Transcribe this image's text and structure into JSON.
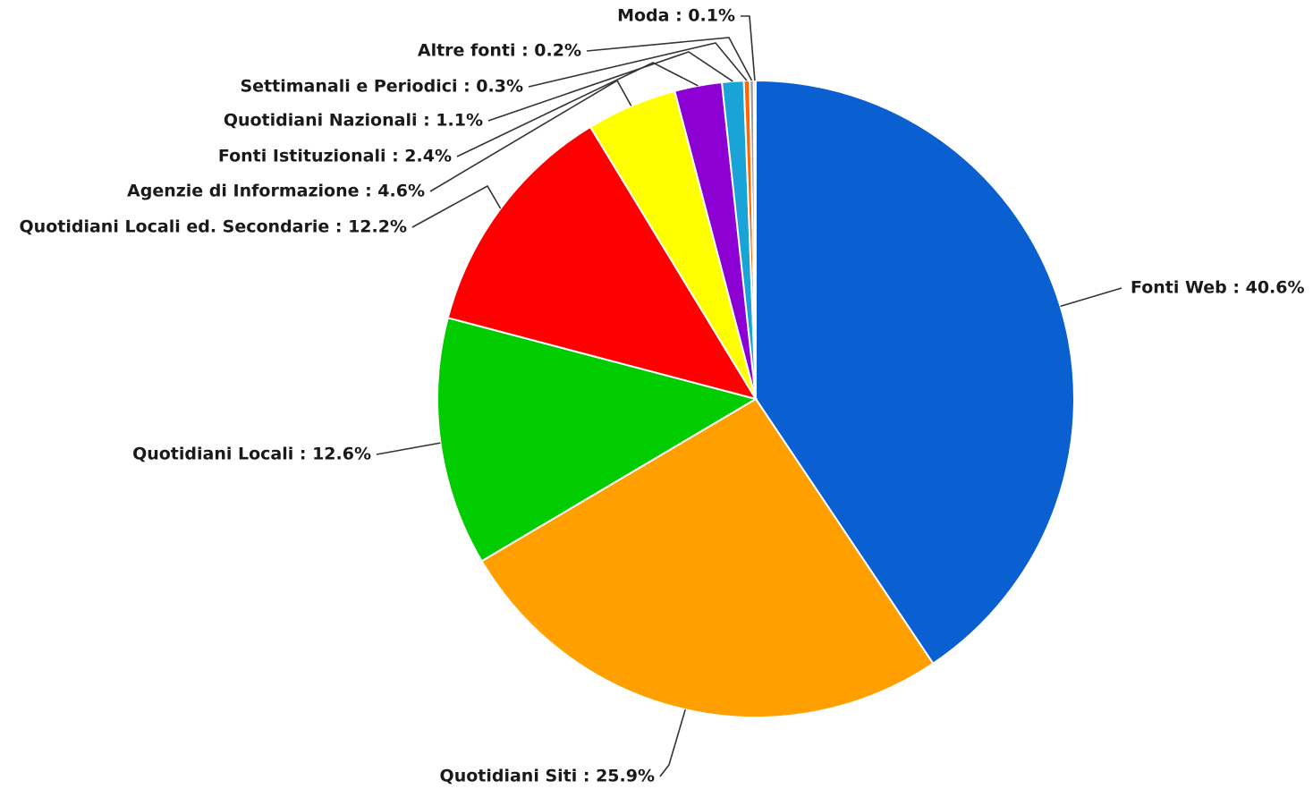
{
  "chart_data": {
    "type": "pie",
    "title": "",
    "slices": [
      {
        "label": "Fonti Web",
        "value": 40.6,
        "value_label": "40.6%",
        "color": "#0a5fd1"
      },
      {
        "label": "Quotidiani Siti ",
        "value": 25.9,
        "value_label": "25.9%",
        "color": "#ff9f00"
      },
      {
        "label": "Quotidiani Locali",
        "value": 12.6,
        "value_label": "12.6%",
        "color": "#00cc00"
      },
      {
        "label": "Quotidiani Locali ed. Secondarie ",
        "value": 12.2,
        "value_label": "12.2%",
        "color": "#ff0000"
      },
      {
        "label": "Agenzie di Informazione",
        "value": 4.6,
        "value_label": "4.6%",
        "color": "#ffff00"
      },
      {
        "label": "Fonti Istituzionali",
        "value": 2.4,
        "value_label": "2.4%",
        "color": "#8c00d4"
      },
      {
        "label": "Quotidiani Nazionali",
        "value": 1.1,
        "value_label": "1.1%",
        "color": "#1aa3d6"
      },
      {
        "label": "Settimanali e Periodici",
        "value": 0.3,
        "value_label": "0.3%",
        "color": "#ff6600"
      },
      {
        "label": "Altre fonti",
        "value": 0.2,
        "value_label": "0.2%",
        "color": "#999999"
      },
      {
        "label": "Moda",
        "value": 0.1,
        "value_label": "0.1%",
        "color": "#cc9900"
      }
    ],
    "label_format": "{label} : {value_label}",
    "legend": "none",
    "start_angle": "12 o'clock, clockwise"
  }
}
